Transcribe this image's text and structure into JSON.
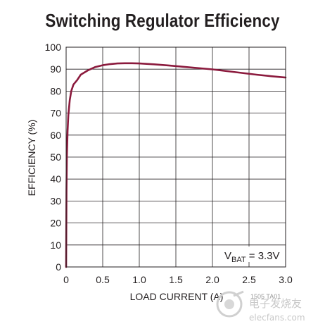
{
  "chart_data": {
    "type": "line",
    "title": "Switching Regulator Efficiency",
    "xlabel": "LOAD CURRENT (A)",
    "ylabel": "EFFICIENCY (%)",
    "xlim": [
      0,
      3.0
    ],
    "ylim": [
      0,
      100
    ],
    "x_ticks": [
      "0",
      "0.5",
      "1.0",
      "1.5",
      "2.0",
      "2.5",
      "3.0"
    ],
    "y_ticks": [
      "0",
      "10",
      "20",
      "30",
      "40",
      "50",
      "60",
      "70",
      "80",
      "90",
      "100"
    ],
    "grid": true,
    "line_color": "#8b1a3d",
    "annotation": {
      "prefix": "V",
      "subscript": "BAT",
      "suffix": " = 3.3V"
    },
    "fig_code": "1505 TA01",
    "series": [
      {
        "x": [
          0,
          0.005,
          0.01,
          0.02,
          0.03,
          0.05,
          0.07,
          0.1,
          0.15,
          0.2,
          0.3,
          0.4,
          0.5,
          0.6,
          0.7,
          0.8,
          0.9,
          1.0,
          1.2,
          1.4,
          1.6,
          1.8,
          2.0,
          2.2,
          2.4,
          2.6,
          2.8,
          3.0
        ],
        "y": [
          0,
          35,
          50,
          62,
          69,
          76,
          80,
          83,
          85,
          87.5,
          89.5,
          91,
          91.8,
          92.3,
          92.6,
          92.7,
          92.7,
          92.6,
          92.2,
          91.7,
          91.1,
          90.5,
          89.9,
          89.1,
          88.3,
          87.5,
          86.8,
          86.2
        ]
      }
    ]
  },
  "watermark": {
    "text": "电子发烧友",
    "url_text": "elecfans.com"
  }
}
